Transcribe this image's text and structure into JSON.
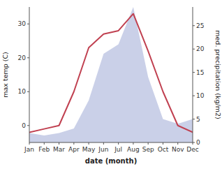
{
  "chart_data": {
    "type": "line",
    "x_label": "date (month)",
    "y_label": "max temp (C)",
    "y2_label": "med. precipitation (kg/m2)",
    "categories": [
      "Jan",
      "Feb",
      "Mar",
      "Apr",
      "May",
      "Jun",
      "Jul",
      "Aug",
      "Sep",
      "Oct",
      "Nov",
      "Dec"
    ],
    "series": [
      {
        "type": "line",
        "color": "#c04050",
        "values": [
          -2,
          -1,
          0,
          10,
          23,
          27,
          28,
          33,
          22,
          10,
          0,
          -2
        ]
      },
      {
        "type": "area",
        "axis": "y2",
        "color": "#b8c0e0",
        "values": [
          2,
          1.5,
          2,
          3,
          9,
          19,
          21,
          29,
          14,
          5,
          4,
          5
        ]
      }
    ],
    "ylim": [
      -5,
      35
    ],
    "yticks": [
      0,
      10,
      20,
      30
    ],
    "y2lim": [
      0,
      29
    ],
    "y2ticks": [
      0,
      5,
      10,
      15,
      20,
      25
    ],
    "grid": false
  }
}
